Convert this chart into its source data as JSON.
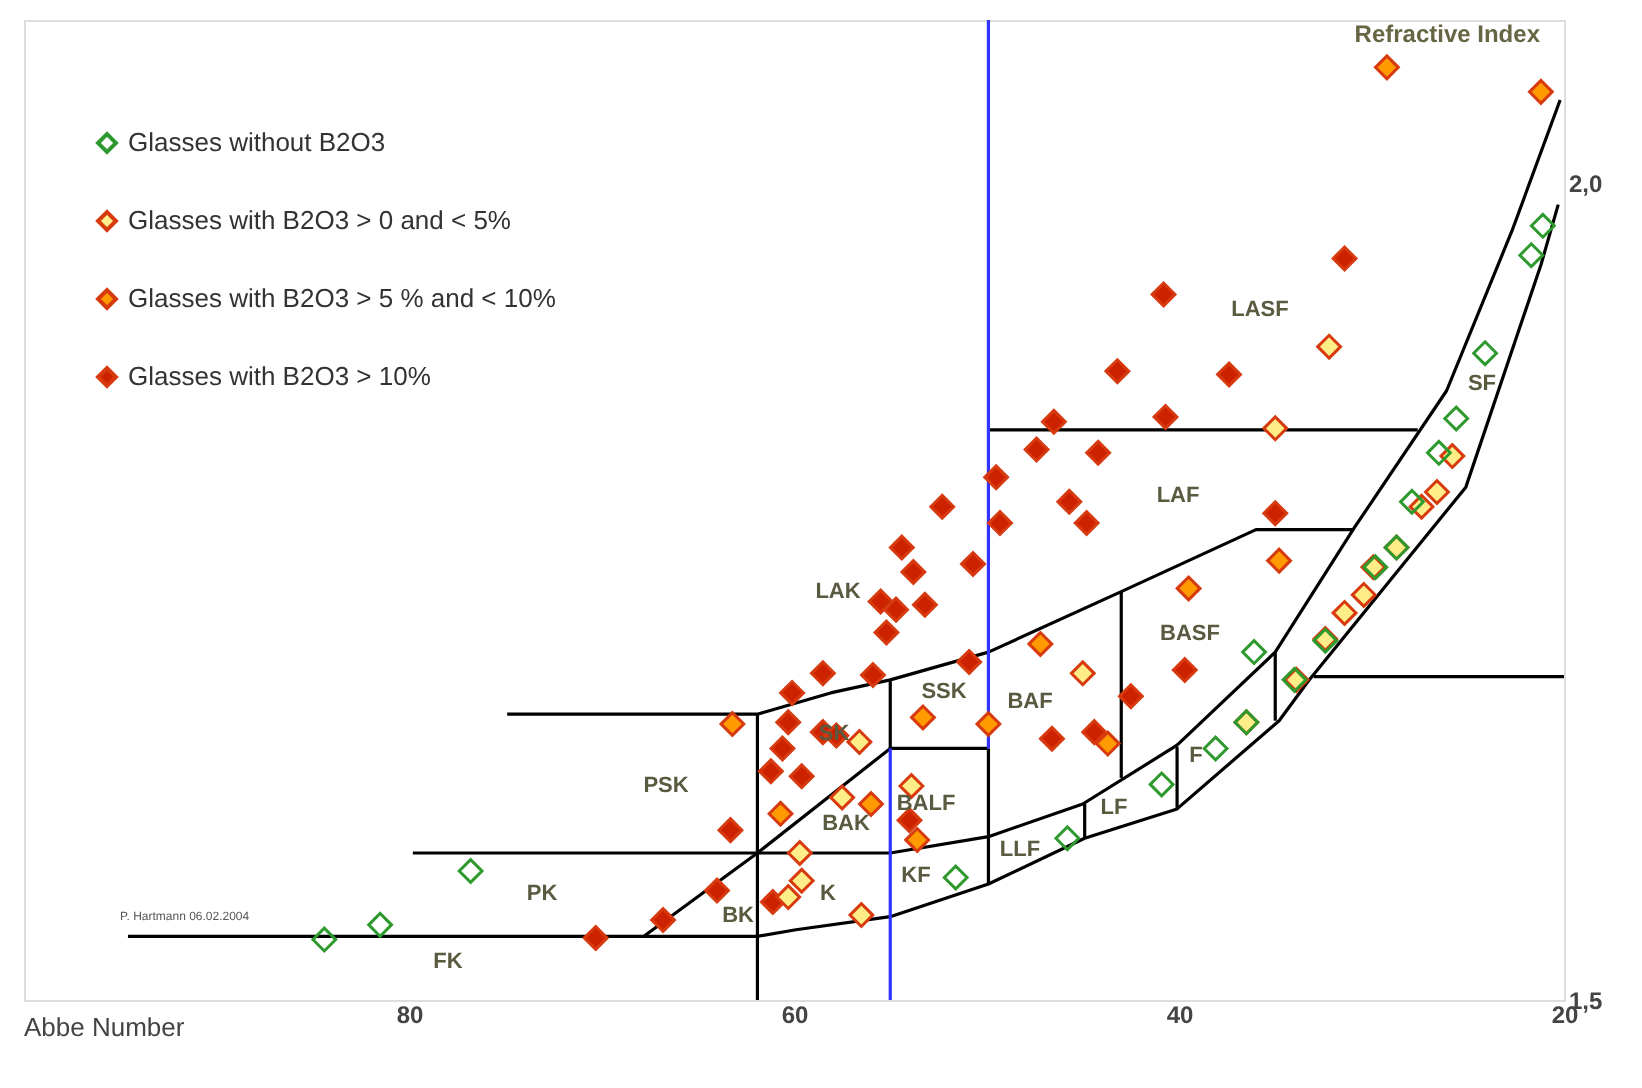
{
  "chart_data": {
    "type": "scatter",
    "xlabel": "Abbe Number",
    "ylabel": "Refractive Index",
    "xlim": [
      100,
      20
    ],
    "xticks": [
      80,
      60,
      40,
      20
    ],
    "ylim": [
      1.5,
      2.1
    ],
    "yticks": [
      {
        "value": 2.0,
        "label": "2,0"
      },
      {
        "value": 1.5,
        "label": "1,5"
      }
    ],
    "grid": false,
    "legend": "top left",
    "marker": "diamond",
    "series": [
      {
        "name": "Glasses without B2O3",
        "color": "#2e9a2e",
        "x": [
          84.4,
          81.5,
          76.8,
          51.6,
          45.8,
          40.9,
          38.1,
          36.5,
          36.1,
          34.0,
          32.4,
          29.8,
          28.7,
          27.9,
          26.5,
          25.6,
          24.1,
          21.7,
          21.1
        ],
        "values": [
          1.537,
          1.546,
          1.579,
          1.575,
          1.599,
          1.632,
          1.654,
          1.67,
          1.713,
          1.696,
          1.72,
          1.765,
          1.777,
          1.805,
          1.835,
          1.856,
          1.896,
          1.956,
          1.974
        ]
      },
      {
        "name": "Glasses with B2O3 > 0 and < 5%",
        "color": "#ffee88",
        "x": [
          59.7,
          59.6,
          60.3,
          56.6,
          57.5,
          53.9,
          56.5,
          45.0,
          36.5,
          33.9,
          32.4,
          31.4,
          30.4,
          29.9,
          28.7,
          27.4,
          26.6,
          25.8,
          35.0,
          32.2
        ],
        "values": [
          1.59,
          1.573,
          1.563,
          1.658,
          1.624,
          1.631,
          1.552,
          1.7,
          1.67,
          1.696,
          1.721,
          1.737,
          1.748,
          1.765,
          1.777,
          1.802,
          1.811,
          1.833,
          1.85,
          1.9
        ]
      },
      {
        "name": "Glasses with B2O3 > 5 % and < 10%",
        "color": "#ff9a00",
        "x": [
          63.2,
          60.7,
          56.0,
          53.6,
          53.3,
          49.9,
          47.2,
          43.7,
          39.5,
          34.8,
          29.2,
          21.2
        ],
        "values": [
          1.669,
          1.614,
          1.62,
          1.598,
          1.673,
          1.669,
          1.718,
          1.657,
          1.752,
          1.769,
          2.071,
          2.056
        ]
      },
      {
        "name": "Glasses with B2O3 > 10%",
        "color": "#cc2200",
        "x": [
          60.1,
          58.5,
          60.3,
          60.6,
          61.2,
          59.6,
          63.3,
          64.0,
          66.8,
          70.3,
          61.1,
          58.5,
          57.8,
          54.0,
          46.6,
          44.4,
          42.5,
          39.7,
          50.9,
          55.9,
          55.2,
          55.5,
          54.7,
          53.2,
          54.4,
          53.8,
          50.7,
          52.3,
          49.3,
          49.5,
          47.4,
          46.5,
          44.2,
          45.7,
          44.8,
          43.2,
          40.8,
          40.7,
          37.4,
          35.0,
          31.4
        ],
        "values": [
          1.688,
          1.7,
          1.67,
          1.654,
          1.64,
          1.637,
          1.604,
          1.567,
          1.549,
          1.538,
          1.56,
          1.664,
          1.662,
          1.61,
          1.66,
          1.664,
          1.686,
          1.702,
          1.707,
          1.699,
          1.725,
          1.744,
          1.739,
          1.742,
          1.777,
          1.762,
          1.767,
          1.802,
          1.792,
          1.82,
          1.837,
          1.854,
          1.835,
          1.805,
          1.792,
          1.885,
          1.932,
          1.857,
          1.883,
          1.798,
          1.954
        ]
      },
      {
        "type": "line",
        "marker": "none",
        "color": "#000000",
        "x": [
          94.6,
          61.9,
          59.9,
          55.0,
          49.9,
          44.9,
          40.1,
          34.8,
          33.3,
          25.1,
          21.2,
          20.3
        ],
        "values": [
          1.539,
          1.539,
          1.543,
          1.551,
          1.571,
          1.599,
          1.617,
          1.671,
          1.695,
          1.814,
          1.95,
          1.987
        ]
      },
      {
        "type": "line",
        "marker": "none",
        "color": "#000000",
        "x": [
          79.8,
          61.9,
          55.0,
          49.9,
          45.0,
          40.1,
          35.0,
          30.9,
          26.1,
          22.7,
          20.2
        ],
        "values": [
          1.59,
          1.59,
          1.59,
          1.6,
          1.62,
          1.656,
          1.713,
          1.789,
          1.873,
          1.971,
          2.051
        ]
      },
      {
        "type": "line",
        "marker": "none",
        "color": "#000000",
        "x": [
          74.9,
          61.9,
          58.1,
          55.0,
          49.9,
          43.0,
          36.0,
          30.9
        ],
        "values": [
          1.675,
          1.675,
          1.688,
          1.696,
          1.713,
          1.75,
          1.788,
          1.788
        ]
      },
      {
        "type": "line",
        "marker": "none",
        "color": "#000000",
        "x": [
          49.9,
          27.6
        ],
        "values": [
          1.849,
          1.849
        ]
      },
      {
        "type": "line",
        "marker": "none",
        "color": "#000000",
        "x": [
          61.9,
          61.9
        ],
        "values": [
          1.5,
          1.675
        ]
      },
      {
        "type": "line",
        "marker": "none",
        "color": "#000000",
        "x": [
          67.8,
          61.9,
          55.0,
          49.9
        ],
        "values": [
          1.539,
          1.59,
          1.654,
          1.654
        ]
      },
      {
        "type": "line",
        "marker": "none",
        "color": "#000000",
        "x": [
          55.0,
          55.0
        ],
        "values": [
          1.654,
          1.696
        ]
      },
      {
        "type": "line",
        "marker": "none",
        "color": "#000000",
        "x": [
          49.9,
          49.9
        ],
        "values": [
          1.571,
          1.654
        ]
      },
      {
        "type": "line",
        "marker": "none",
        "color": "#000000",
        "x": [
          44.9,
          44.9
        ],
        "values": [
          1.599,
          1.62
        ]
      },
      {
        "type": "line",
        "marker": "none",
        "color": "#000000",
        "x": [
          40.1,
          40.1
        ],
        "values": [
          1.617,
          1.655
        ]
      },
      {
        "type": "line",
        "marker": "none",
        "color": "#000000",
        "x": [
          43.0,
          43.0
        ],
        "values": [
          1.636,
          1.75
        ]
      },
      {
        "type": "line",
        "marker": "none",
        "color": "#000000",
        "x": [
          35.0,
          35.0
        ],
        "values": [
          1.671,
          1.713
        ]
      },
      {
        "type": "line",
        "marker": "none",
        "color": "#000000",
        "x": [
          33.0,
          20.0
        ],
        "values": [
          1.698,
          1.698
        ]
      },
      {
        "type": "line",
        "marker": "none",
        "color": "#3333ff",
        "x": [
          49.9,
          49.9
        ],
        "values": [
          1.654,
          2.1
        ]
      },
      {
        "type": "line",
        "marker": "none",
        "color": "#3333ff",
        "x": [
          55.0,
          55.0
        ],
        "values": [
          1.5,
          1.654
        ]
      }
    ],
    "annotations": [
      "FK",
      "PK",
      "PSK",
      "BK",
      "K",
      "BAK",
      "SK",
      "SSK",
      "BALF",
      "KF",
      "LLF",
      "LF",
      "F",
      "BAF",
      "BASF",
      "LAK",
      "LAF",
      "LASF",
      "SF",
      "P. Hartmann 06.02.2004"
    ]
  }
}
